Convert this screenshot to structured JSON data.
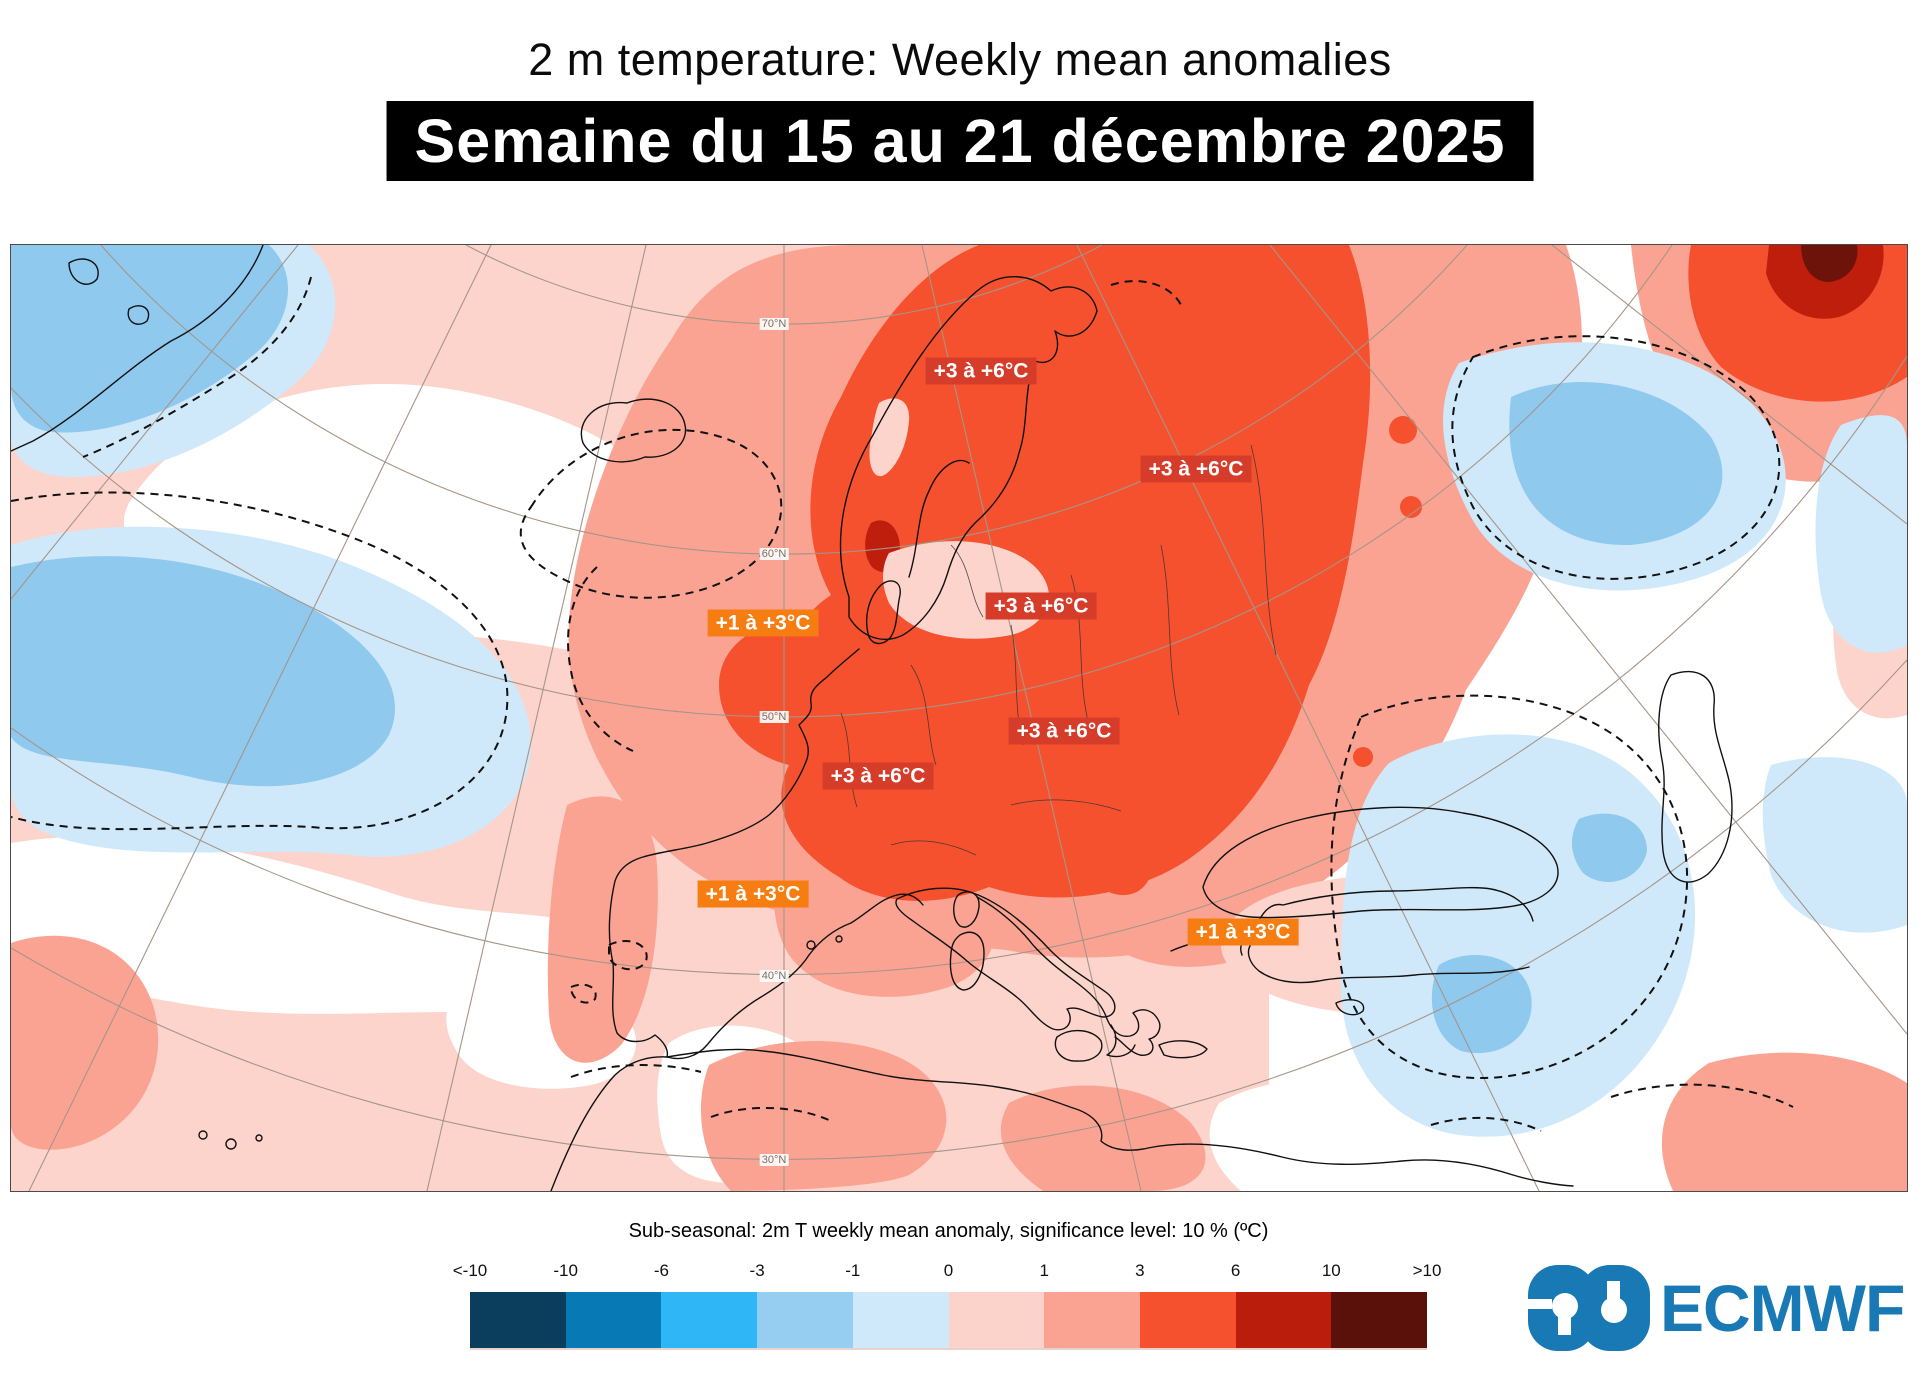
{
  "header": {
    "title": "2 m temperature: Weekly mean anomalies",
    "banner": "Semaine du 15 au 21 décembre 2025"
  },
  "map": {
    "labels": [
      {
        "text": "+3 à +6°C",
        "type": "red"
      },
      {
        "text": "+3 à +6°C",
        "type": "red"
      },
      {
        "text": "+3 à +6°C",
        "type": "red"
      },
      {
        "text": "+1 à +3°C",
        "type": "orange"
      },
      {
        "text": "+3 à +6°C",
        "type": "red"
      },
      {
        "text": "+3 à +6°C",
        "type": "red"
      },
      {
        "text": "+1 à +3°C",
        "type": "orange"
      },
      {
        "text": "+1 à +3°C",
        "type": "orange"
      }
    ],
    "graticule_labels": [
      {
        "text": "70°N"
      },
      {
        "text": "60°N"
      },
      {
        "text": "50°N"
      },
      {
        "text": "40°N"
      },
      {
        "text": "30°N"
      }
    ],
    "label_colors": {
      "red": "#d63c2a",
      "orange": "#f57d11"
    }
  },
  "legend": {
    "caption": "Sub-seasonal: 2m T weekly mean anomaly, significance level: 10 % (ºC)",
    "ticks": [
      "<-10",
      "-10",
      "-6",
      "-3",
      "-1",
      "0",
      "1",
      "3",
      "6",
      "10",
      ">10"
    ],
    "colors": [
      "#0a3e5c",
      "#0779b4",
      "#2eb6f7",
      "#96cef2",
      "#d0e9fa",
      "#fcd3ca",
      "#fba393",
      "#f5512e",
      "#bb1d0c",
      "#591109"
    ]
  },
  "logo": {
    "text": "ECMWF",
    "color": "#1879b4"
  }
}
